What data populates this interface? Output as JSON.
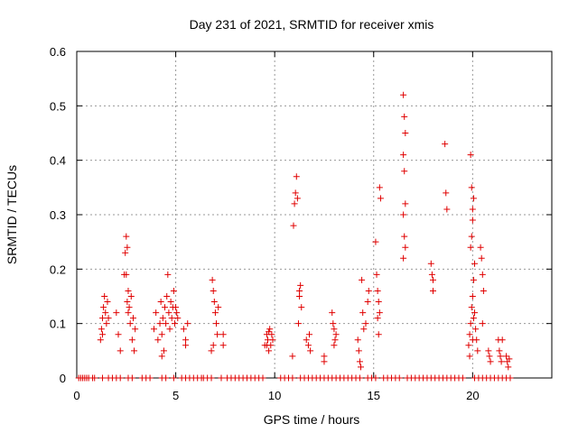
{
  "chart_data": {
    "type": "scatter",
    "title": "Day 231 of 2021, SRMTID for receiver xmis",
    "xlabel": "GPS time / hours",
    "ylabel": "SRMTID / TECUs",
    "xlim": [
      0,
      24
    ],
    "ylim": [
      0,
      0.6
    ],
    "xticks": [
      0,
      5,
      10,
      15,
      20
    ],
    "yticks": [
      0,
      0.1,
      0.2,
      0.3,
      0.4,
      0.5,
      0.6
    ],
    "xtick_labels": [
      "0",
      "5",
      "10",
      "15",
      "20"
    ],
    "ytick_labels": [
      "0",
      "0.1",
      "0.2",
      "0.3",
      "0.4",
      "0.5",
      "0.6"
    ],
    "grid": true,
    "marker": "+",
    "color": "#e00000",
    "series": [
      {
        "name": "SRMTID",
        "points": [
          [
            0.1,
            0
          ],
          [
            0.2,
            0
          ],
          [
            0.3,
            0
          ],
          [
            0.4,
            0
          ],
          [
            0.5,
            0
          ],
          [
            0.6,
            0
          ],
          [
            0.8,
            0
          ],
          [
            0.9,
            0
          ],
          [
            1.3,
            0
          ],
          [
            1.6,
            0
          ],
          [
            1.8,
            0
          ],
          [
            2.0,
            0
          ],
          [
            2.2,
            0
          ],
          [
            2.6,
            0
          ],
          [
            2.8,
            0
          ],
          [
            3.3,
            0
          ],
          [
            3.5,
            0
          ],
          [
            3.7,
            0
          ],
          [
            4.3,
            0
          ],
          [
            4.5,
            0
          ],
          [
            4.9,
            0
          ],
          [
            5.3,
            0
          ],
          [
            5.5,
            0
          ],
          [
            5.7,
            0
          ],
          [
            5.9,
            0
          ],
          [
            6.1,
            0
          ],
          [
            6.3,
            0
          ],
          [
            6.4,
            0
          ],
          [
            6.6,
            0
          ],
          [
            6.8,
            0
          ],
          [
            7.3,
            0
          ],
          [
            7.6,
            0
          ],
          [
            7.8,
            0
          ],
          [
            8.0,
            0
          ],
          [
            8.2,
            0
          ],
          [
            8.4,
            0
          ],
          [
            8.6,
            0
          ],
          [
            8.8,
            0
          ],
          [
            9.0,
            0
          ],
          [
            9.2,
            0
          ],
          [
            9.4,
            0
          ],
          [
            10.3,
            0
          ],
          [
            10.5,
            0
          ],
          [
            10.7,
            0
          ],
          [
            10.9,
            0
          ],
          [
            11.3,
            0
          ],
          [
            11.5,
            0
          ],
          [
            11.7,
            0
          ],
          [
            11.9,
            0
          ],
          [
            12.1,
            0
          ],
          [
            12.3,
            0
          ],
          [
            12.5,
            0
          ],
          [
            12.7,
            0
          ],
          [
            12.9,
            0
          ],
          [
            13.1,
            0
          ],
          [
            13.3,
            0
          ],
          [
            13.5,
            0
          ],
          [
            13.7,
            0
          ],
          [
            13.9,
            0
          ],
          [
            14.1,
            0
          ],
          [
            14.3,
            0
          ],
          [
            14.7,
            0
          ],
          [
            14.9,
            0
          ],
          [
            15.1,
            0
          ],
          [
            15.5,
            0
          ],
          [
            15.7,
            0
          ],
          [
            15.9,
            0
          ],
          [
            16.1,
            0
          ],
          [
            16.3,
            0
          ],
          [
            16.7,
            0
          ],
          [
            16.9,
            0
          ],
          [
            17.1,
            0
          ],
          [
            17.3,
            0
          ],
          [
            17.5,
            0
          ],
          [
            17.7,
            0
          ],
          [
            17.9,
            0
          ],
          [
            18.1,
            0
          ],
          [
            18.3,
            0
          ],
          [
            18.5,
            0
          ],
          [
            18.7,
            0
          ],
          [
            18.9,
            0
          ],
          [
            19.1,
            0
          ],
          [
            19.3,
            0
          ],
          [
            19.5,
            0
          ],
          [
            20.1,
            0
          ],
          [
            20.3,
            0
          ],
          [
            20.5,
            0
          ],
          [
            20.7,
            0
          ],
          [
            20.9,
            0
          ],
          [
            21.1,
            0
          ],
          [
            21.3,
            0
          ],
          [
            21.5,
            0
          ],
          [
            21.7,
            0
          ],
          [
            21.9,
            0
          ],
          [
            1.2,
            0.07
          ],
          [
            1.25,
            0.09
          ],
          [
            1.3,
            0.11
          ],
          [
            1.35,
            0.13
          ],
          [
            1.4,
            0.15
          ],
          [
            1.45,
            0.12
          ],
          [
            1.5,
            0.1
          ],
          [
            1.55,
            0.14
          ],
          [
            1.6,
            0.11
          ],
          [
            1.3,
            0.08
          ],
          [
            2.0,
            0.12
          ],
          [
            2.1,
            0.08
          ],
          [
            2.2,
            0.05
          ],
          [
            2.4,
            0.19
          ],
          [
            2.45,
            0.23
          ],
          [
            2.5,
            0.26
          ],
          [
            2.55,
            0.24
          ],
          [
            2.6,
            0.16
          ],
          [
            2.65,
            0.13
          ],
          [
            2.7,
            0.1
          ],
          [
            2.75,
            0.15
          ],
          [
            2.8,
            0.07
          ],
          [
            2.85,
            0.11
          ],
          [
            2.9,
            0.05
          ],
          [
            2.95,
            0.09
          ],
          [
            2.5,
            0.19
          ],
          [
            2.55,
            0.14
          ],
          [
            2.6,
            0.12
          ],
          [
            3.9,
            0.09
          ],
          [
            4.0,
            0.12
          ],
          [
            4.1,
            0.07
          ],
          [
            4.2,
            0.1
          ],
          [
            4.25,
            0.14
          ],
          [
            4.3,
            0.08
          ],
          [
            4.35,
            0.11
          ],
          [
            4.4,
            0.05
          ],
          [
            4.45,
            0.13
          ],
          [
            4.5,
            0.1
          ],
          [
            4.55,
            0.15
          ],
          [
            4.6,
            0.19
          ],
          [
            4.65,
            0.12
          ],
          [
            4.7,
            0.09
          ],
          [
            4.75,
            0.14
          ],
          [
            4.8,
            0.11
          ],
          [
            4.85,
            0.13
          ],
          [
            4.9,
            0.16
          ],
          [
            4.95,
            0.1
          ],
          [
            5.0,
            0.13
          ],
          [
            5.05,
            0.12
          ],
          [
            5.1,
            0.11
          ],
          [
            4.3,
            0.04
          ],
          [
            5.4,
            0.09
          ],
          [
            5.5,
            0.07
          ],
          [
            5.6,
            0.1
          ],
          [
            5.5,
            0.06
          ],
          [
            6.8,
            0.05
          ],
          [
            6.85,
            0.18
          ],
          [
            6.9,
            0.16
          ],
          [
            6.95,
            0.14
          ],
          [
            7.0,
            0.12
          ],
          [
            7.05,
            0.1
          ],
          [
            7.1,
            0.08
          ],
          [
            7.15,
            0.13
          ],
          [
            6.9,
            0.06
          ],
          [
            7.4,
            0.08
          ],
          [
            7.4,
            0.06
          ],
          [
            9.5,
            0.06
          ],
          [
            9.6,
            0.08
          ],
          [
            9.65,
            0.07
          ],
          [
            9.7,
            0.05
          ],
          [
            9.75,
            0.09
          ],
          [
            9.8,
            0.06
          ],
          [
            9.85,
            0.08
          ],
          [
            9.9,
            0.07
          ],
          [
            9.6,
            0.06
          ],
          [
            9.7,
            0.085
          ],
          [
            10.9,
            0.04
          ],
          [
            10.95,
            0.28
          ],
          [
            11.0,
            0.32
          ],
          [
            11.05,
            0.34
          ],
          [
            11.1,
            0.37
          ],
          [
            11.15,
            0.33
          ],
          [
            11.2,
            0.1
          ],
          [
            11.25,
            0.16
          ],
          [
            11.3,
            0.17
          ],
          [
            11.35,
            0.13
          ],
          [
            11.25,
            0.15
          ],
          [
            11.6,
            0.07
          ],
          [
            11.7,
            0.06
          ],
          [
            11.75,
            0.08
          ],
          [
            11.8,
            0.05
          ],
          [
            12.5,
            0.04
          ],
          [
            12.5,
            0.03
          ],
          [
            12.9,
            0.12
          ],
          [
            12.95,
            0.1
          ],
          [
            13.0,
            0.09
          ],
          [
            13.05,
            0.07
          ],
          [
            13.1,
            0.08
          ],
          [
            13.0,
            0.06
          ],
          [
            14.2,
            0.07
          ],
          [
            14.25,
            0.05
          ],
          [
            14.3,
            0.03
          ],
          [
            14.35,
            0.02
          ],
          [
            14.4,
            0.18
          ],
          [
            14.45,
            0.12
          ],
          [
            14.5,
            0.09
          ],
          [
            14.6,
            0.1
          ],
          [
            14.7,
            0.14
          ],
          [
            14.75,
            0.16
          ],
          [
            15.1,
            0.25
          ],
          [
            15.15,
            0.19
          ],
          [
            15.2,
            0.16
          ],
          [
            15.25,
            0.14
          ],
          [
            15.3,
            0.35
          ],
          [
            15.35,
            0.33
          ],
          [
            15.2,
            0.11
          ],
          [
            15.25,
            0.08
          ],
          [
            15.3,
            0.12
          ],
          [
            16.5,
            0.52
          ],
          [
            16.55,
            0.48
          ],
          [
            16.6,
            0.45
          ],
          [
            16.5,
            0.41
          ],
          [
            16.55,
            0.38
          ],
          [
            16.6,
            0.32
          ],
          [
            16.5,
            0.3
          ],
          [
            16.55,
            0.26
          ],
          [
            16.6,
            0.24
          ],
          [
            16.5,
            0.22
          ],
          [
            17.9,
            0.21
          ],
          [
            17.95,
            0.19
          ],
          [
            18.0,
            0.16
          ],
          [
            18.0,
            0.18
          ],
          [
            18.6,
            0.43
          ],
          [
            18.65,
            0.34
          ],
          [
            18.7,
            0.31
          ],
          [
            19.8,
            0.06
          ],
          [
            19.85,
            0.08
          ],
          [
            19.9,
            0.1
          ],
          [
            19.95,
            0.13
          ],
          [
            20.0,
            0.15
          ],
          [
            20.05,
            0.18
          ],
          [
            20.1,
            0.21
          ],
          [
            19.9,
            0.24
          ],
          [
            19.95,
            0.26
          ],
          [
            20.0,
            0.29
          ],
          [
            20.0,
            0.31
          ],
          [
            19.95,
            0.35
          ],
          [
            19.9,
            0.41
          ],
          [
            20.05,
            0.33
          ],
          [
            20.1,
            0.12
          ],
          [
            20.15,
            0.09
          ],
          [
            20.2,
            0.07
          ],
          [
            20.25,
            0.05
          ],
          [
            19.85,
            0.04
          ],
          [
            20.0,
            0.07
          ],
          [
            20.05,
            0.11
          ],
          [
            20.4,
            0.24
          ],
          [
            20.45,
            0.22
          ],
          [
            20.5,
            0.19
          ],
          [
            20.55,
            0.16
          ],
          [
            20.5,
            0.1
          ],
          [
            20.8,
            0.05
          ],
          [
            20.85,
            0.04
          ],
          [
            20.9,
            0.03
          ],
          [
            21.3,
            0.07
          ],
          [
            21.35,
            0.05
          ],
          [
            21.4,
            0.04
          ],
          [
            21.45,
            0.03
          ],
          [
            21.5,
            0.07
          ],
          [
            21.7,
            0.04
          ],
          [
            21.75,
            0.03
          ],
          [
            21.8,
            0.02
          ],
          [
            21.85,
            0.035
          ]
        ]
      }
    ]
  }
}
